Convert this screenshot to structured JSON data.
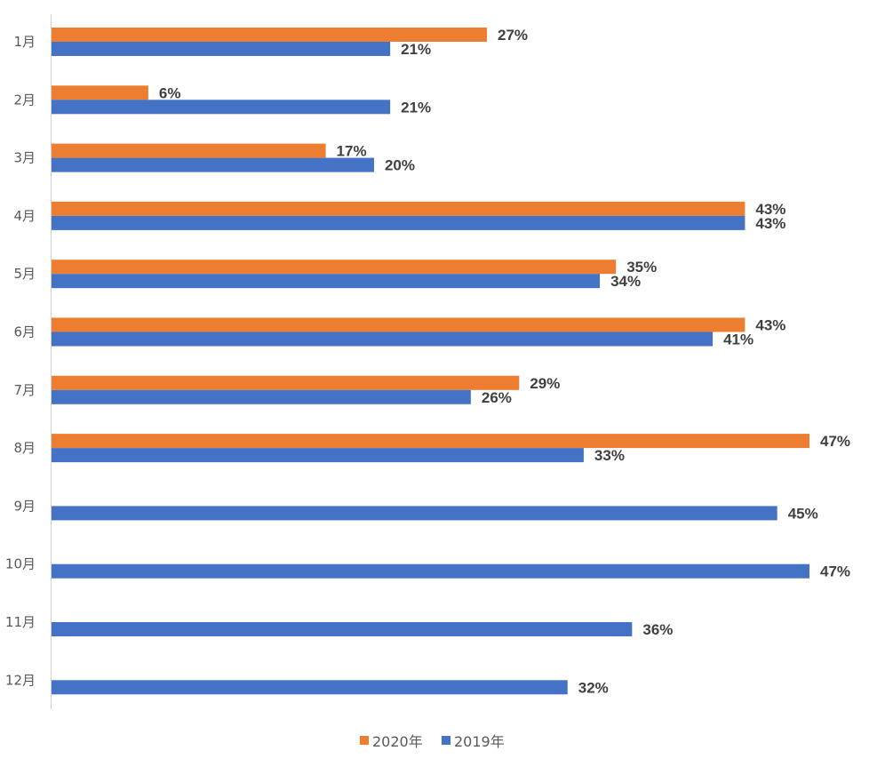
{
  "chart_data": {
    "type": "bar",
    "orientation": "horizontal",
    "categories": [
      "1月",
      "2月",
      "3月",
      "4月",
      "5月",
      "6月",
      "7月",
      "8月",
      "9月",
      "10月",
      "11月",
      "12月"
    ],
    "series": [
      {
        "name": "2020年",
        "color": "#ED7D31",
        "values": [
          27,
          6,
          17,
          43,
          35,
          43,
          29,
          47,
          null,
          null,
          null,
          null
        ],
        "labels": [
          "27%",
          "6%",
          "17%",
          "43%",
          "35%",
          "43%",
          "29%",
          "47%",
          "",
          "",
          "",
          ""
        ]
      },
      {
        "name": "2019年",
        "color": "#4472C4",
        "values": [
          21,
          21,
          20,
          43,
          34,
          41,
          26,
          33,
          45,
          47,
          36,
          32
        ],
        "labels": [
          "21%",
          "21%",
          "20%",
          "43%",
          "34%",
          "41%",
          "26%",
          "33%",
          "45%",
          "47%",
          "36%",
          "32%"
        ]
      }
    ],
    "xlim": [
      0,
      47
    ],
    "grid": false,
    "legend_position": "bottom"
  }
}
